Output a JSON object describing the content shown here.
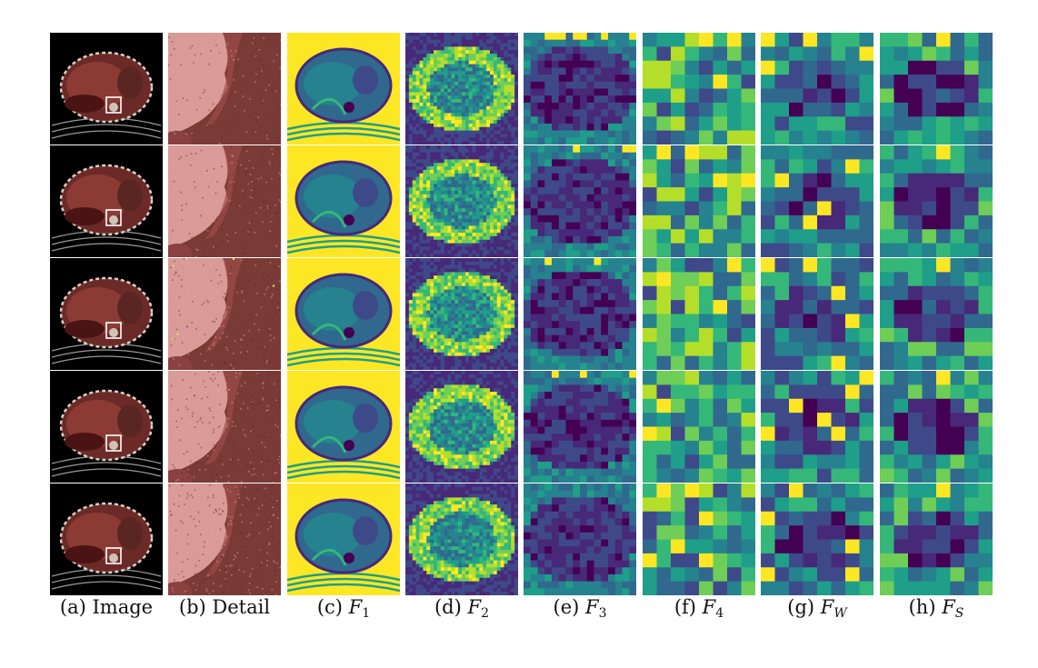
{
  "figure": {
    "panels": [
      {
        "id": "a",
        "caption_prefix": "(a)",
        "caption_text": "Image",
        "symbol": "",
        "subscript": ""
      },
      {
        "id": "b",
        "caption_prefix": "(b)",
        "caption_text": "Detail",
        "symbol": "",
        "subscript": ""
      },
      {
        "id": "c",
        "caption_prefix": "(c)",
        "caption_text": "",
        "symbol": "F",
        "subscript": "1"
      },
      {
        "id": "d",
        "caption_prefix": "(d)",
        "caption_text": "",
        "symbol": "F",
        "subscript": "2"
      },
      {
        "id": "e",
        "caption_prefix": "(e)",
        "caption_text": "",
        "symbol": "F",
        "subscript": "3"
      },
      {
        "id": "f",
        "caption_prefix": "(f)",
        "caption_text": "",
        "symbol": "F",
        "subscript": "4"
      },
      {
        "id": "g",
        "caption_prefix": "(g)",
        "caption_text": "",
        "symbol": "F",
        "subscript": "W"
      },
      {
        "id": "h",
        "caption_prefix": "(h)",
        "caption_text": "",
        "symbol": "F",
        "subscript": "S"
      }
    ],
    "row_count": 5,
    "feature_map_resolution": {
      "d": 32,
      "e": 16,
      "f": 8,
      "g": 8,
      "h": 8
    },
    "colormap": [
      "#440154",
      "#482878",
      "#3e4989",
      "#31688e",
      "#26828e",
      "#1f9e89",
      "#35b779",
      "#6ece58",
      "#b5de2b",
      "#fde725"
    ],
    "ct_colors": {
      "background": "#000000",
      "liver": "#8c3b34",
      "tissue": "#a0544a",
      "ring": "#d9cfc5",
      "roi_box": "#ffffff"
    }
  }
}
